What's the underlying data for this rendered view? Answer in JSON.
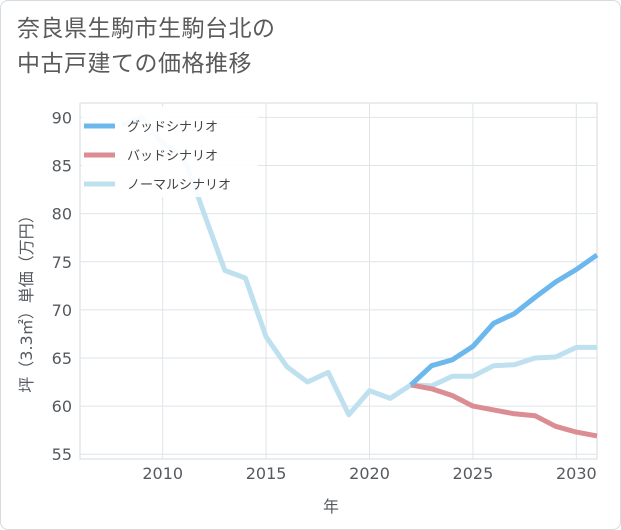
{
  "title_lines": [
    "奈良県生駒市生駒台北の",
    "中古戸建ての価格推移"
  ],
  "chart_data": {
    "type": "line",
    "title": "奈良県生駒市生駒台北の中古戸建ての価格推移",
    "xlabel": "年",
    "ylabel": "坪（3.3㎡）単価（万円）",
    "xlim": [
      2006,
      2031
    ],
    "ylim": [
      54.5,
      91.5
    ],
    "xticks": [
      2010,
      2015,
      2020,
      2025,
      2030
    ],
    "yticks": [
      55,
      60,
      65,
      70,
      75,
      80,
      85,
      90
    ],
    "grid": true,
    "legend_position": "top-left",
    "series": [
      {
        "name": "グッドシナリオ",
        "color": "#6cb8ec",
        "x": [
          2022,
          2023,
          2024,
          2025,
          2026,
          2027,
          2028,
          2029,
          2030,
          2031
        ],
        "y": [
          62.2,
          64.2,
          64.8,
          66.2,
          68.6,
          69.6,
          71.3,
          72.9,
          74.2,
          75.7
        ]
      },
      {
        "name": "バッドシナリオ",
        "color": "#dc8c93",
        "x": [
          2022,
          2023,
          2024,
          2025,
          2026,
          2027,
          2028,
          2029,
          2030,
          2031
        ],
        "y": [
          62.2,
          61.8,
          61.1,
          60.0,
          59.6,
          59.2,
          59.0,
          57.9,
          57.3,
          56.9
        ]
      },
      {
        "name": "ノーマルシナリオ",
        "color": "#bfe0ee",
        "x": [
          2008,
          2009,
          2010,
          2011,
          2012,
          2013,
          2014,
          2015,
          2016,
          2017,
          2018,
          2019,
          2020,
          2021,
          2022,
          2023,
          2024,
          2025,
          2026,
          2027,
          2028,
          2029,
          2030,
          2031
        ],
        "y": [
          89.2,
          90.0,
          87.3,
          86.0,
          80.0,
          74.1,
          73.3,
          67.2,
          64.1,
          62.5,
          63.5,
          59.1,
          61.6,
          60.8,
          62.2,
          62.1,
          63.1,
          63.1,
          64.2,
          64.3,
          65.0,
          65.1,
          66.1,
          66.1
        ]
      }
    ]
  }
}
